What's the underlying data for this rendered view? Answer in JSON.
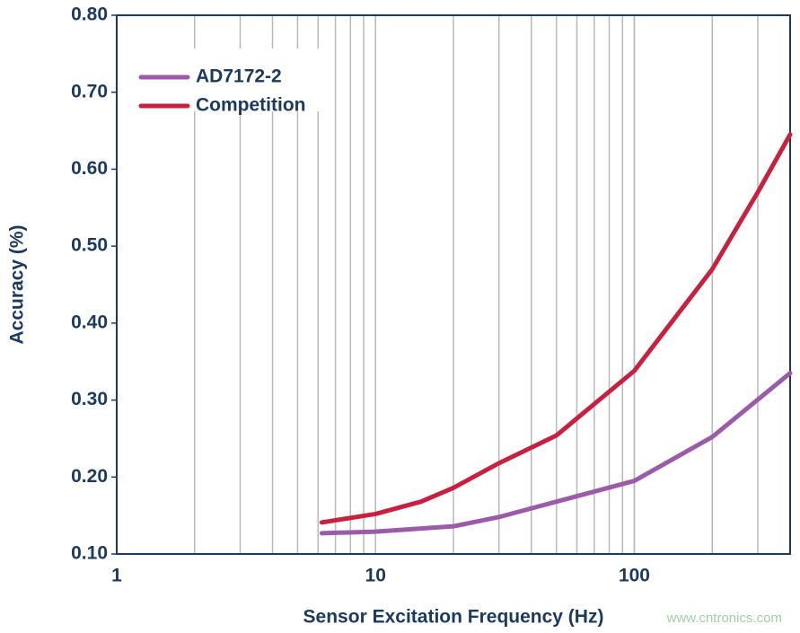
{
  "chart_data": {
    "type": "line",
    "xlabel": "Sensor Excitation Frequency (Hz)",
    "ylabel": "Accuracy (%)",
    "watermark": "www.cntronics.com",
    "xscale": "log",
    "xlim": [
      1,
      400
    ],
    "ylim": [
      0.1,
      0.8
    ],
    "xticks": [
      1,
      10,
      100
    ],
    "xgrid": [
      2,
      3,
      4,
      5,
      6,
      7,
      8,
      9,
      10,
      20,
      30,
      40,
      50,
      60,
      70,
      80,
      90,
      100,
      200,
      300
    ],
    "yticks": [
      {
        "value": 0.1,
        "label": "0.10"
      },
      {
        "value": 0.2,
        "label": "0.20"
      },
      {
        "value": 0.3,
        "label": "0.30"
      },
      {
        "value": 0.4,
        "label": "0.40"
      },
      {
        "value": 0.5,
        "label": "0.50"
      },
      {
        "value": 0.6,
        "label": "0.60"
      },
      {
        "value": 0.7,
        "label": "0.70"
      },
      {
        "value": 0.8,
        "label": "0.80"
      }
    ],
    "legend": "upper left",
    "series": [
      {
        "name": "AD7172-2",
        "color": "#9b5ba8",
        "x": [
          6.2,
          10,
          20,
          30,
          50,
          100,
          200,
          400
        ],
        "values": [
          0.127,
          0.129,
          0.136,
          0.148,
          0.168,
          0.195,
          0.252,
          0.335
        ]
      },
      {
        "name": "Competition",
        "color": "#c8203f",
        "x": [
          6.2,
          10,
          15,
          20,
          30,
          50,
          100,
          200,
          300,
          400
        ],
        "values": [
          0.141,
          0.152,
          0.168,
          0.186,
          0.218,
          0.254,
          0.338,
          0.47,
          0.57,
          0.645
        ]
      }
    ]
  }
}
